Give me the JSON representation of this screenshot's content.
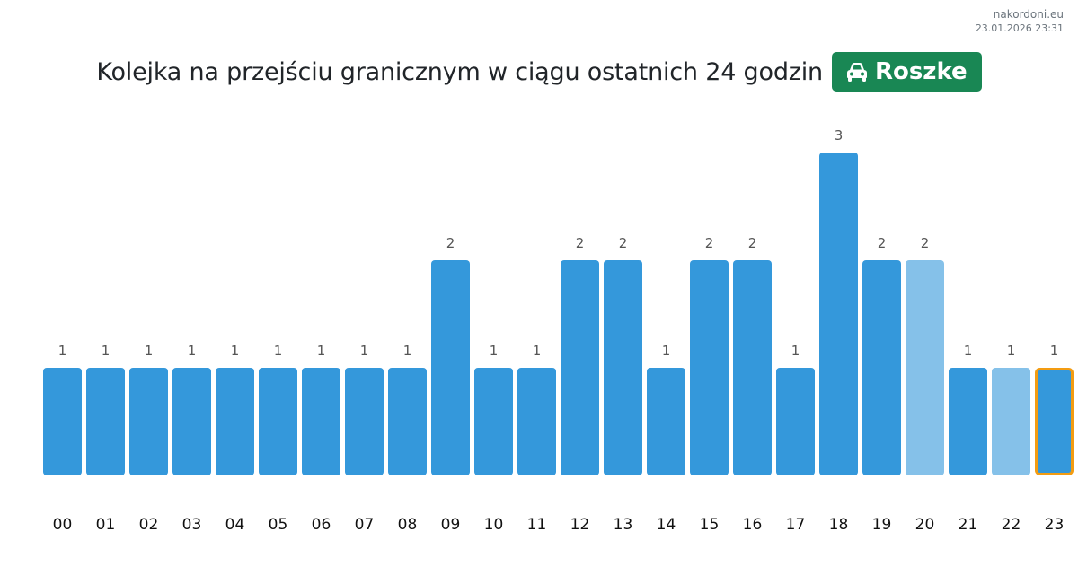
{
  "watermark": {
    "site": "nakordoni.eu",
    "timestamp": "23.01.2026 23:31"
  },
  "header": {
    "title": "Kolejka na przejściu granicznym w ciągu ostatnich 24 godzin",
    "badge_label": "Roszke",
    "badge_icon": "car-icon",
    "badge_color": "#198754"
  },
  "chart_data": {
    "type": "bar",
    "title": "Kolejka na przejściu granicznym w ciągu ostatnich 24 godzin",
    "xlabel": "",
    "ylabel": "",
    "ylim": [
      0,
      3
    ],
    "grid": false,
    "categories": [
      "00",
      "01",
      "02",
      "03",
      "04",
      "05",
      "06",
      "07",
      "08",
      "09",
      "10",
      "11",
      "12",
      "13",
      "14",
      "15",
      "16",
      "17",
      "18",
      "19",
      "20",
      "21",
      "22",
      "23"
    ],
    "values": [
      1,
      1,
      1,
      1,
      1,
      1,
      1,
      1,
      1,
      2,
      1,
      1,
      2,
      2,
      1,
      2,
      2,
      1,
      3,
      2,
      2,
      1,
      1,
      1
    ],
    "bar_colors": [
      "#3498db",
      "#3498db",
      "#3498db",
      "#3498db",
      "#3498db",
      "#3498db",
      "#3498db",
      "#3498db",
      "#3498db",
      "#3498db",
      "#3498db",
      "#3498db",
      "#3498db",
      "#3498db",
      "#3498db",
      "#3498db",
      "#3498db",
      "#3498db",
      "#3498db",
      "#3498db",
      "#85c1e9",
      "#3498db",
      "#85c1e9",
      "#3498db"
    ],
    "highlight_category": "23",
    "highlight_border_color": "#f39c12"
  }
}
